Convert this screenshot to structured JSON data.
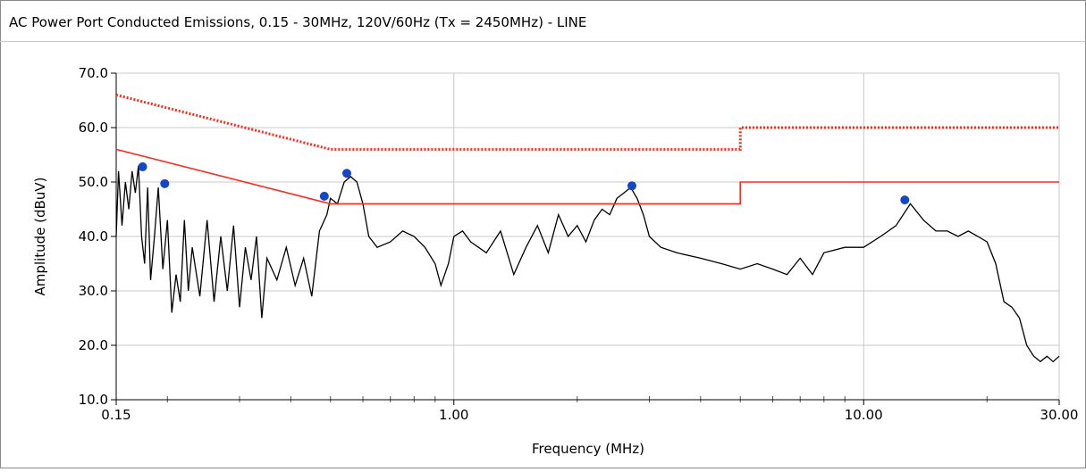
{
  "chart_data": {
    "type": "line",
    "title": "AC Power Port Conducted Emissions, 0.15 - 30MHz, 120V/60Hz (Tx = 2450MHz) - LINE",
    "x_label": "Frequency (MHz)",
    "y_label": "Amplitude (dBuV)",
    "xscale": "log",
    "xlim": [
      0.15,
      30
    ],
    "ylim": [
      10,
      70
    ],
    "xticks": [
      0.15,
      {
        "value": 1,
        "label": "1.00"
      },
      {
        "value": 10,
        "label": "10.00"
      },
      {
        "value": 30,
        "label": "30.00"
      }
    ],
    "xminor_ticks": [
      0.2,
      0.3,
      0.4,
      0.5,
      0.6,
      0.7,
      0.8,
      0.9,
      2,
      3,
      4,
      5,
      6,
      7,
      8,
      9,
      20
    ],
    "yticks": [
      {
        "value": 10,
        "label": "10.0"
      },
      {
        "value": 20,
        "label": "20.0"
      },
      {
        "value": 30,
        "label": "30.0"
      },
      {
        "value": 40,
        "label": "40.0"
      },
      {
        "value": 50,
        "label": "50.0"
      },
      {
        "value": 60,
        "label": "60.0"
      },
      {
        "value": 70,
        "label": "70.0"
      }
    ],
    "grid": true,
    "series": [
      {
        "color": "#000000",
        "style": "solid",
        "x": [
          0.15,
          0.152,
          0.155,
          0.158,
          0.161,
          0.164,
          0.167,
          0.17,
          0.173,
          0.176,
          0.179,
          0.182,
          0.186,
          0.19,
          0.195,
          0.2,
          0.205,
          0.21,
          0.215,
          0.22,
          0.225,
          0.23,
          0.24,
          0.25,
          0.26,
          0.27,
          0.28,
          0.29,
          0.3,
          0.31,
          0.32,
          0.33,
          0.34,
          0.35,
          0.37,
          0.39,
          0.41,
          0.43,
          0.45,
          0.47,
          0.49,
          0.5,
          0.52,
          0.54,
          0.56,
          0.58,
          0.6,
          0.62,
          0.65,
          0.7,
          0.75,
          0.8,
          0.85,
          0.9,
          0.93,
          0.97,
          1.0,
          1.05,
          1.1,
          1.2,
          1.3,
          1.4,
          1.5,
          1.6,
          1.7,
          1.8,
          1.9,
          2.0,
          2.1,
          2.2,
          2.3,
          2.4,
          2.5,
          2.6,
          2.7,
          2.8,
          2.9,
          3.0,
          3.2,
          3.5,
          4.0,
          4.5,
          5.0,
          5.5,
          6.0,
          6.5,
          7.0,
          7.5,
          8.0,
          9.0,
          10,
          11,
          12,
          13,
          14,
          15,
          16,
          17,
          18,
          19,
          20,
          21,
          22,
          23,
          24,
          25,
          26,
          27,
          28,
          29,
          30
        ],
        "values": [
          40,
          52,
          42,
          50,
          45,
          52,
          48,
          53,
          40,
          35,
          49,
          32,
          40,
          49,
          34,
          43,
          26,
          33,
          28,
          43,
          30,
          38,
          29,
          43,
          28,
          40,
          30,
          42,
          27,
          38,
          32,
          40,
          25,
          36,
          32,
          38,
          31,
          36,
          29,
          41,
          44,
          47,
          46,
          50,
          51,
          50,
          46,
          40,
          38,
          39,
          41,
          40,
          38,
          35,
          31,
          35,
          40,
          41,
          39,
          37,
          41,
          33,
          38,
          42,
          37,
          44,
          40,
          42,
          39,
          43,
          45,
          44,
          47,
          48,
          49,
          47,
          44,
          40,
          38,
          37,
          36,
          35,
          34,
          35,
          34,
          33,
          36,
          33,
          37,
          38,
          38,
          40,
          42,
          46,
          43,
          41,
          41,
          40,
          41,
          40,
          39,
          35,
          28,
          27,
          25,
          20,
          18,
          17,
          18,
          17,
          18
        ]
      },
      {
        "color": "#ff2a1a",
        "style": "dotted",
        "x": [
          0.15,
          0.5,
          5,
          5,
          30
        ],
        "values": [
          66,
          56,
          56,
          60,
          60
        ]
      },
      {
        "color": "#ff2a1a",
        "style": "solid",
        "x": [
          0.15,
          0.5,
          5,
          5,
          30
        ],
        "values": [
          56,
          46,
          46,
          50,
          50
        ]
      },
      {
        "color": "#1446c8",
        "style": "markers",
        "x": [
          0.174,
          0.197,
          0.483,
          0.548,
          2.72,
          12.6
        ],
        "values": [
          52.8,
          49.7,
          47.4,
          51.6,
          49.3,
          46.7
        ]
      }
    ]
  }
}
